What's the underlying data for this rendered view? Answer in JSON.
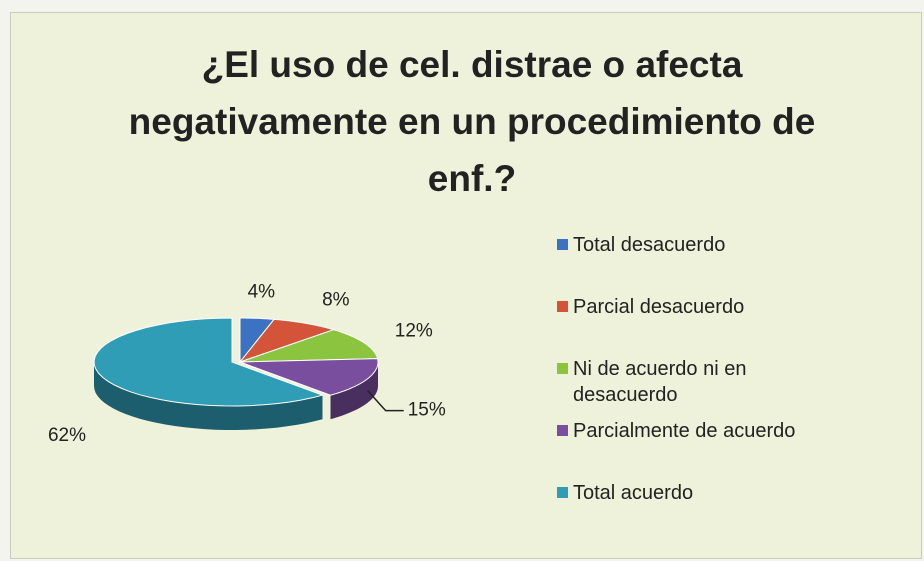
{
  "chart_data": {
    "type": "pie",
    "title": "¿El uso de cel. distrae o afecta negativamente en un procedimiento de enf.?",
    "categories": [
      "Total desacuerdo",
      "Parcial desacuerdo",
      "Ni de acuerdo ni en desacuerdo",
      "Parcialmente de acuerdo",
      "Total acuerdo"
    ],
    "values": [
      4,
      8,
      12,
      15,
      62
    ],
    "value_labels": [
      "4%",
      "8%",
      "12%",
      "15%",
      "62%"
    ],
    "colors": [
      "#3b72c2",
      "#d4543a",
      "#8bc43f",
      "#7a4e9e",
      "#2f9db5"
    ],
    "legend": "right"
  }
}
